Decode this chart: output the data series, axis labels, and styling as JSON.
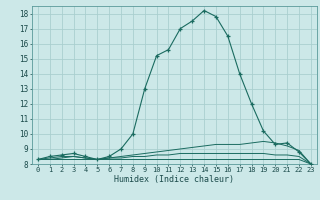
{
  "xlabel": "Humidex (Indice chaleur)",
  "bg_color": "#cce8e8",
  "line_color": "#1a6b60",
  "grid_color": "#aacfcf",
  "xlim": [
    -0.5,
    23.5
  ],
  "ylim": [
    8,
    18.5
  ],
  "yticks": [
    8,
    9,
    10,
    11,
    12,
    13,
    14,
    15,
    16,
    17,
    18
  ],
  "xticks": [
    0,
    1,
    2,
    3,
    4,
    5,
    6,
    7,
    8,
    9,
    10,
    11,
    12,
    13,
    14,
    15,
    16,
    17,
    18,
    19,
    20,
    21,
    22,
    23
  ],
  "series": [
    {
      "x": [
        0,
        1,
        2,
        3,
        4,
        5,
        6,
        7,
        8,
        9,
        10,
        11,
        12,
        13,
        14,
        15,
        16,
        17,
        18,
        19,
        20,
        21,
        22,
        23
      ],
      "y": [
        8.3,
        8.5,
        8.6,
        8.7,
        8.5,
        8.3,
        8.5,
        9.0,
        10.0,
        13.0,
        15.2,
        15.6,
        17.0,
        17.5,
        18.2,
        17.8,
        16.5,
        14.0,
        12.0,
        10.2,
        9.3,
        9.4,
        8.8,
        8.0
      ],
      "marker": true
    },
    {
      "x": [
        0,
        1,
        2,
        3,
        4,
        5,
        6,
        7,
        8,
        9,
        10,
        11,
        12,
        13,
        14,
        15,
        16,
        17,
        18,
        19,
        20,
        21,
        22,
        23
      ],
      "y": [
        8.3,
        8.4,
        8.5,
        8.5,
        8.4,
        8.3,
        8.4,
        8.5,
        8.6,
        8.7,
        8.8,
        8.9,
        9.0,
        9.1,
        9.2,
        9.3,
        9.3,
        9.3,
        9.4,
        9.5,
        9.4,
        9.2,
        8.9,
        8.0
      ],
      "marker": false
    },
    {
      "x": [
        0,
        1,
        2,
        3,
        4,
        5,
        6,
        7,
        8,
        9,
        10,
        11,
        12,
        13,
        14,
        15,
        16,
        17,
        18,
        19,
        20,
        21,
        22,
        23
      ],
      "y": [
        8.3,
        8.3,
        8.4,
        8.5,
        8.4,
        8.3,
        8.4,
        8.4,
        8.5,
        8.5,
        8.6,
        8.6,
        8.7,
        8.7,
        8.7,
        8.7,
        8.7,
        8.7,
        8.7,
        8.7,
        8.6,
        8.6,
        8.5,
        8.0
      ],
      "marker": false
    },
    {
      "x": [
        0,
        1,
        2,
        3,
        4,
        5,
        6,
        7,
        8,
        9,
        10,
        11,
        12,
        13,
        14,
        15,
        16,
        17,
        18,
        19,
        20,
        21,
        22,
        23
      ],
      "y": [
        8.3,
        8.3,
        8.3,
        8.3,
        8.3,
        8.3,
        8.3,
        8.3,
        8.3,
        8.3,
        8.3,
        8.3,
        8.3,
        8.3,
        8.3,
        8.3,
        8.3,
        8.3,
        8.3,
        8.3,
        8.3,
        8.3,
        8.3,
        8.0
      ],
      "marker": false
    }
  ]
}
